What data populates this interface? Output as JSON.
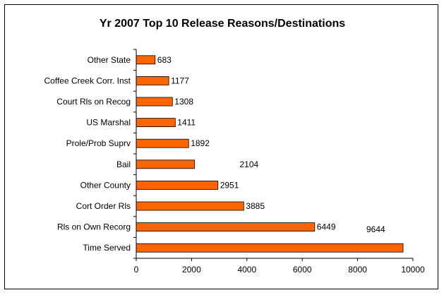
{
  "chart_data": {
    "type": "bar",
    "orientation": "horizontal",
    "title": "Yr 2007 Top 10 Release Reasons/Destinations",
    "categories": [
      "Other State",
      "Coffee Creek Corr. Inst",
      "Court Rls on Recog",
      "US Marshal",
      "Prole/Prob Suprv",
      "Bail",
      "Other County",
      "Cort Order Rls",
      "Rls on Own Recorg",
      "Time Served"
    ],
    "values": [
      683,
      1177,
      1308,
      1411,
      1892,
      2104,
      2951,
      3885,
      6449,
      9644
    ],
    "value_labels": [
      "683",
      "1177",
      "1308",
      "1411",
      "1892",
      "2104",
      "2951",
      "3885",
      "6449",
      "9644"
    ],
    "xlim": [
      0,
      10000
    ],
    "x_ticks": [
      0,
      2000,
      4000,
      6000,
      8000,
      10000
    ],
    "x_tick_labels": [
      "0",
      "2000",
      "4000",
      "6000",
      "8000",
      "10000"
    ],
    "grid": false,
    "legend": "none",
    "bar_color": "#FF6600",
    "bar_edge_color": "#000000"
  }
}
